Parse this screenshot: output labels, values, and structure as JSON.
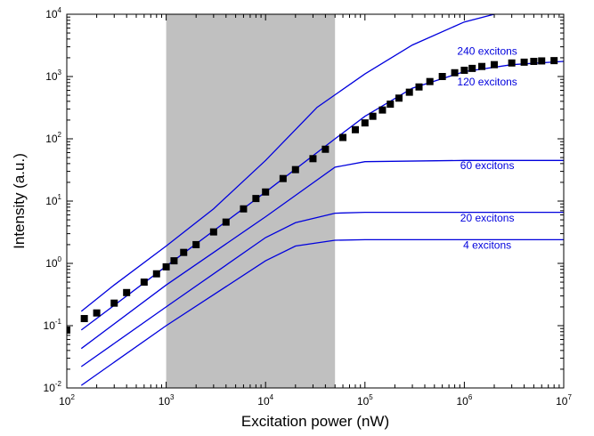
{
  "chart_data": {
    "type": "scatter",
    "xlabel": "Excitation power (nW)",
    "ylabel": "Intensity (a.u.)",
    "xscale": "log",
    "yscale": "log",
    "xlim": [
      100,
      10000000
    ],
    "ylim": [
      0.01,
      10000
    ],
    "x_ticks": [
      {
        "base": "10",
        "exp": "2",
        "value": 100
      },
      {
        "base": "10",
        "exp": "3",
        "value": 1000
      },
      {
        "base": "10",
        "exp": "4",
        "value": 10000
      },
      {
        "base": "10",
        "exp": "5",
        "value": 100000
      },
      {
        "base": "10",
        "exp": "6",
        "value": 1000000
      },
      {
        "base": "10",
        "exp": "7",
        "value": 10000000
      }
    ],
    "y_ticks": [
      {
        "base": "10",
        "exp": "-2",
        "value": 0.01
      },
      {
        "base": "10",
        "exp": "-1",
        "value": 0.1
      },
      {
        "base": "10",
        "exp": "0",
        "value": 1
      },
      {
        "base": "10",
        "exp": "1",
        "value": 10
      },
      {
        "base": "10",
        "exp": "2",
        "value": 100
      },
      {
        "base": "10",
        "exp": "3",
        "value": 1000
      },
      {
        "base": "10",
        "exp": "4",
        "value": 10000
      }
    ],
    "shaded_region": {
      "x": [
        1000,
        50000
      ],
      "color": "#c0c0c0"
    },
    "grid": false,
    "line_color": "#0000dd",
    "marker_color": "#000000",
    "measured": {
      "x": [
        100,
        150,
        200,
        300,
        400,
        600,
        800,
        1000,
        1200,
        1500,
        2000,
        3000,
        4000,
        6000,
        8000,
        10000,
        15000,
        20000,
        30000,
        40000,
        60000,
        80000,
        100000,
        120000,
        150000,
        180000,
        220000,
        280000,
        350000,
        450000,
        600000,
        800000,
        1000000,
        1200000,
        1500000,
        2000000,
        3000000,
        4000000,
        5000000,
        6000000,
        8000000
      ],
      "y": [
        0.085,
        0.13,
        0.16,
        0.23,
        0.34,
        0.5,
        0.68,
        0.88,
        1.1,
        1.5,
        2.0,
        3.2,
        4.6,
        7.5,
        11,
        14,
        23,
        32,
        48,
        68,
        105,
        140,
        180,
        230,
        290,
        360,
        450,
        560,
        680,
        830,
        1000,
        1150,
        1260,
        1350,
        1450,
        1550,
        1650,
        1700,
        1750,
        1780,
        1800
      ]
    },
    "series": [
      {
        "name": "240 excitons",
        "x": [
          140,
          300,
          1000,
          3000,
          10000,
          33000,
          100000,
          300000,
          1000000,
          2000000
        ],
        "y": [
          0.17,
          0.45,
          1.9,
          7.5,
          45,
          320,
          1100,
          3200,
          7500,
          10000
        ]
      },
      {
        "name": "120 excitons",
        "x": [
          140,
          1000,
          10000,
          50000,
          100000,
          300000,
          1000000,
          3000000,
          10000000
        ],
        "y": [
          0.085,
          0.9,
          14,
          100,
          230,
          650,
          1200,
          1550,
          1750
        ]
      },
      {
        "name": "60 excitons",
        "x": [
          140,
          1000,
          10000,
          50000,
          100000,
          1000000,
          10000000
        ],
        "y": [
          0.043,
          0.45,
          5.6,
          35,
          43,
          45,
          45
        ]
      },
      {
        "name": "20 excitons",
        "x": [
          140,
          1000,
          10000,
          20000,
          50000,
          100000,
          10000000
        ],
        "y": [
          0.022,
          0.2,
          2.6,
          4.5,
          6.4,
          6.6,
          6.6
        ]
      },
      {
        "name": "4 excitons",
        "x": [
          140,
          1000,
          10000,
          20000,
          50000,
          100000,
          10000000
        ],
        "y": [
          0.011,
          0.1,
          1.1,
          1.9,
          2.35,
          2.4,
          2.4
        ]
      }
    ],
    "curve_labels": [
      {
        "text": "240 excitons",
        "x": 1700000,
        "y": 2500
      },
      {
        "text": "120 excitons",
        "x": 1700000,
        "y": 800
      },
      {
        "text": "60 excitons",
        "x": 1700000,
        "y": 36
      },
      {
        "text": "20 excitons",
        "x": 1700000,
        "y": 5.2
      },
      {
        "text": "4 excitons",
        "x": 1700000,
        "y": 1.9
      }
    ]
  }
}
